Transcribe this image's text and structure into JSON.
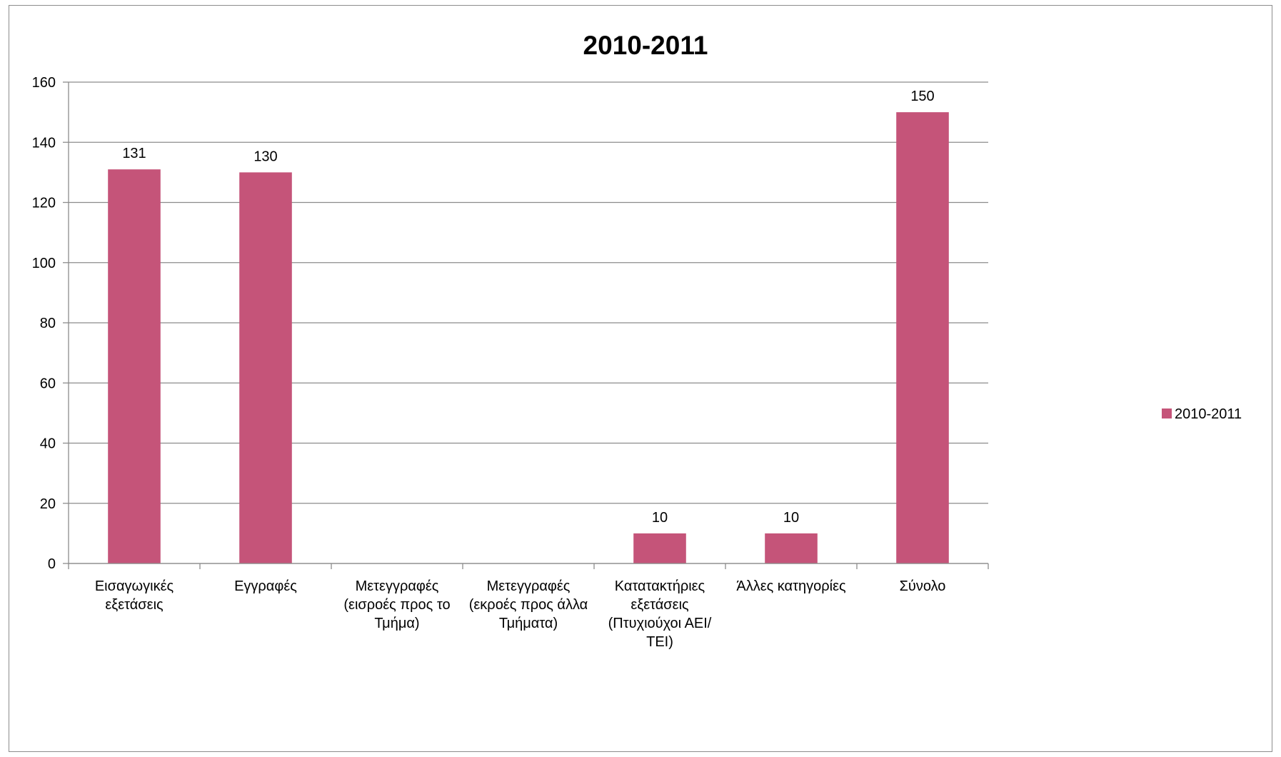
{
  "chart_data": {
    "type": "bar",
    "title": "2010-2011",
    "categories": [
      [
        "Εισαγωγικές",
        "εξετάσεις"
      ],
      [
        "Εγγραφές"
      ],
      [
        "Μετεγγραφές",
        "(εισροές προς το",
        "Τμήμα)"
      ],
      [
        "Μετεγγραφές",
        "(εκροές προς άλλα",
        "Τμήματα)"
      ],
      [
        "Κατατακτήριες",
        "εξετάσεις",
        "(Πτυχιούχοι ΑΕΙ/",
        "ΤΕΙ)"
      ],
      [
        "Άλλες κατηγορίες"
      ],
      [
        "Σύνολο"
      ]
    ],
    "series": [
      {
        "name": "2010-2011",
        "values": [
          131,
          130,
          null,
          null,
          10,
          10,
          150
        ],
        "data_labels": [
          "131",
          "130",
          "",
          "",
          "10",
          "10",
          "150"
        ]
      }
    ],
    "xlabel": "",
    "ylabel": "",
    "ylim": [
      0,
      160
    ],
    "y_ticks": [
      0,
      20,
      40,
      60,
      80,
      100,
      120,
      140,
      160
    ],
    "grid": true,
    "legend_position": "right",
    "colors": {
      "bar": "#c55479",
      "grid": "#8c8c8c",
      "axis": "#8c8c8c",
      "frame": "#8c8c8c"
    }
  }
}
